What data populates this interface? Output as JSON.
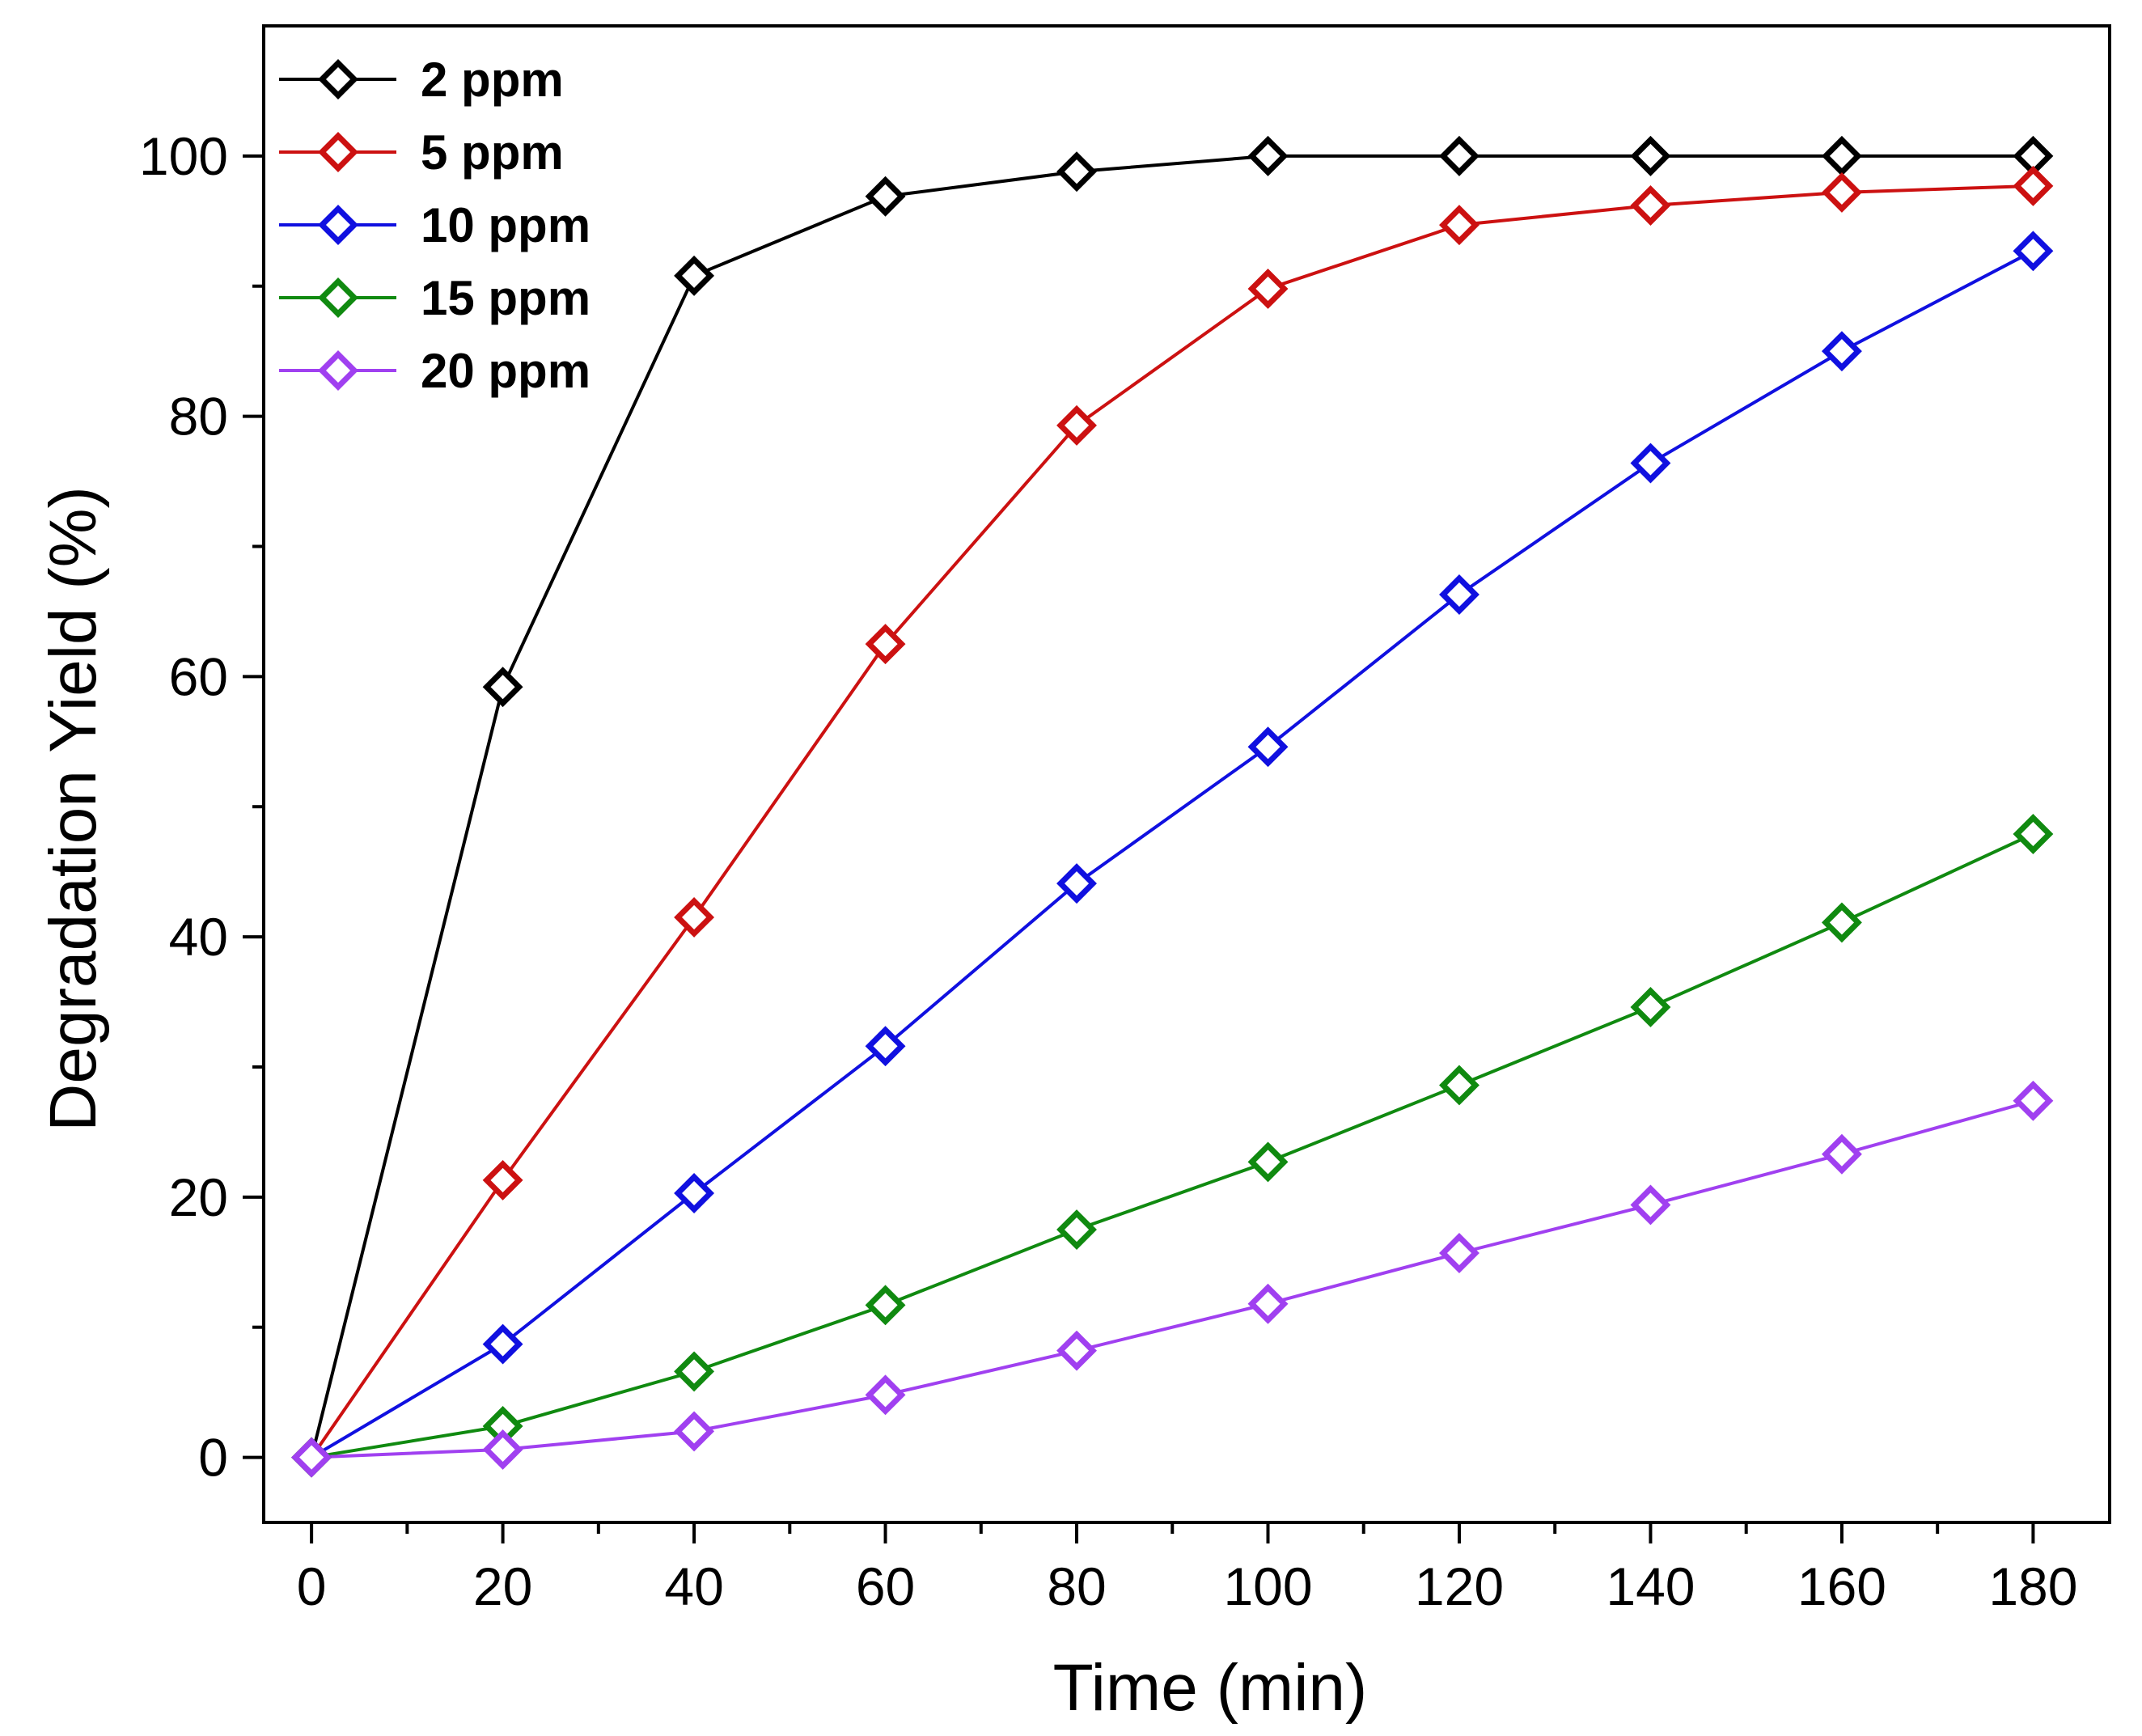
{
  "chart_data": {
    "type": "line",
    "title": "",
    "xlabel": "Time (min)",
    "ylabel": "Degradation Yield (%)",
    "xlim": [
      -5,
      188
    ],
    "ylim": [
      -5,
      110
    ],
    "xticks": [
      0,
      20,
      40,
      60,
      80,
      100,
      120,
      140,
      160,
      180
    ],
    "xtick_labels": [
      "0",
      "20",
      "40",
      "60",
      "80",
      "100",
      "120",
      "140",
      "160",
      "180"
    ],
    "yticks": [
      0,
      20,
      40,
      60,
      80,
      100
    ],
    "ytick_labels": [
      "0",
      "20",
      "40",
      "60",
      "80",
      "100"
    ],
    "legend_position": "top-left",
    "x": [
      0,
      20,
      40,
      60,
      80,
      100,
      120,
      140,
      160,
      180
    ],
    "series": [
      {
        "name": "2 ppm",
        "color": "#000000",
        "values": [
          0,
          59.2,
          90.8,
          96.9,
          98.8,
          100,
          100,
          100,
          100,
          100
        ]
      },
      {
        "name": "5 ppm",
        "color": "#cc1111",
        "values": [
          0,
          21.3,
          41.5,
          62.5,
          79.3,
          89.8,
          94.7,
          96.2,
          97.2,
          97.7
        ]
      },
      {
        "name": "10 ppm",
        "color": "#1010e0",
        "values": [
          0,
          8.7,
          20.3,
          31.6,
          44.1,
          54.6,
          66.3,
          76.4,
          85.0,
          92.7
        ]
      },
      {
        "name": "15 ppm",
        "color": "#108a10",
        "values": [
          0,
          2.4,
          6.6,
          11.7,
          17.5,
          22.7,
          28.6,
          34.6,
          41.1,
          47.9
        ]
      },
      {
        "name": "20 ppm",
        "color": "#a040f0",
        "values": [
          0,
          0.6,
          2.0,
          4.8,
          8.2,
          11.8,
          15.7,
          19.4,
          23.3,
          27.4
        ]
      }
    ]
  }
}
